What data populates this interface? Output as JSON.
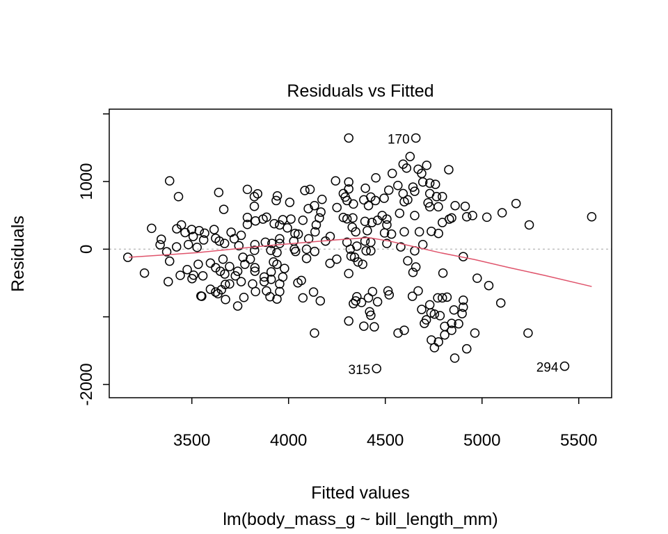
{
  "chart_data": {
    "type": "scatter",
    "title": "Residuals vs Fitted",
    "xlabel": "Fitted values",
    "subtitle": "lm(body_mass_g ~ bill_length_mm)",
    "ylabel": "Residuals",
    "xlim": [
      3073,
      5670
    ],
    "ylim": [
      -2196,
      2070
    ],
    "xticks": [
      3500,
      4000,
      4500,
      5000,
      5500
    ],
    "xtick_labels": [
      "3500",
      "4000",
      "4500",
      "5000",
      "5500"
    ],
    "yticks": [
      -2000,
      -1000,
      0,
      1000,
      2000
    ],
    "ytick_labels": [
      {
        "value": 1000,
        "label": "1000"
      },
      {
        "value": 0,
        "label": "0"
      },
      {
        "value": -2000,
        "label": "-2000"
      }
    ],
    "reference_line": {
      "y": 0,
      "color": "#BEBEBE",
      "style": "dotted"
    },
    "smooth_color": "#DF536B",
    "point_color": "#000000",
    "labeled_points": [
      {
        "label": "170",
        "x": 4658,
        "y": 1644
      },
      {
        "label": "315",
        "x": 4455,
        "y": -1765
      },
      {
        "label": "294",
        "x": 5427,
        "y": -1730
      }
    ],
    "smooth": [
      [
        3175,
        -120
      ],
      [
        3527,
        -52
      ],
      [
        3886,
        51
      ],
      [
        4245,
        137
      ],
      [
        4413,
        171
      ],
      [
        4520,
        120
      ],
      [
        4664,
        27
      ],
      [
        4783,
        -52
      ],
      [
        4963,
        -154
      ],
      [
        5142,
        -274
      ],
      [
        5322,
        -387
      ],
      [
        5567,
        -552
      ]
    ],
    "points": [
      [
        3169,
        -120
      ],
      [
        3255,
        -353
      ],
      [
        3292,
        308
      ],
      [
        3378,
        -480
      ],
      [
        3385,
        1010
      ],
      [
        3431,
        777
      ],
      [
        3342,
        147
      ],
      [
        3336,
        65
      ],
      [
        3370,
        -38
      ],
      [
        3385,
        -178
      ],
      [
        3421,
        34
      ],
      [
        3422,
        301
      ],
      [
        3446,
        359
      ],
      [
        3465,
        246
      ],
      [
        3440,
        -387
      ],
      [
        3476,
        -302
      ],
      [
        3482,
        68
      ],
      [
        3499,
        291
      ],
      [
        3507,
        188
      ],
      [
        3527,
        27
      ],
      [
        3501,
        -435
      ],
      [
        3509,
        -384
      ],
      [
        3533,
        -223
      ],
      [
        3538,
        274
      ],
      [
        3557,
        -394
      ],
      [
        3566,
        236
      ],
      [
        3561,
        137
      ],
      [
        3547,
        -692
      ],
      [
        3551,
        -696
      ],
      [
        3615,
        291
      ],
      [
        3623,
        161
      ],
      [
        3642,
        120
      ],
      [
        3639,
        839
      ],
      [
        3665,
        589
      ],
      [
        3596,
        -206
      ],
      [
        3623,
        -274
      ],
      [
        3647,
        -326
      ],
      [
        3670,
        -367
      ],
      [
        3661,
        -148
      ],
      [
        3669,
        85
      ],
      [
        3695,
        -257
      ],
      [
        3703,
        250
      ],
      [
        3719,
        154
      ],
      [
        3755,
        205
      ],
      [
        3743,
        51
      ],
      [
        3764,
        -120
      ],
      [
        3774,
        -223
      ],
      [
        3802,
        -148
      ],
      [
        3737,
        -326
      ],
      [
        3725,
        -394
      ],
      [
        3755,
        -480
      ],
      [
        3695,
        -514
      ],
      [
        3673,
        -521
      ],
      [
        3653,
        -600
      ],
      [
        3623,
        -634
      ],
      [
        3596,
        -593
      ],
      [
        3635,
        -658
      ],
      [
        3674,
        -744
      ],
      [
        3737,
        -840
      ],
      [
        3769,
        -713
      ],
      [
        3787,
        884
      ],
      [
        3823,
        777
      ],
      [
        3840,
        819
      ],
      [
        3823,
        634
      ],
      [
        3787,
        469
      ],
      [
        3787,
        366
      ],
      [
        3829,
        418
      ],
      [
        3868,
        445
      ],
      [
        3886,
        473
      ],
      [
        3926,
        377
      ],
      [
        3954,
        359
      ],
      [
        3970,
        435
      ],
      [
        4012,
        445
      ],
      [
        3994,
        315
      ],
      [
        3942,
        788
      ],
      [
        3936,
        719
      ],
      [
        4006,
        692
      ],
      [
        4074,
        428
      ],
      [
        4084,
        867
      ],
      [
        4111,
        884
      ],
      [
        4102,
        599
      ],
      [
        4134,
        644
      ],
      [
        4173,
        736
      ],
      [
        4167,
        548
      ],
      [
        4159,
        462
      ],
      [
        4143,
        359
      ],
      [
        4137,
        257
      ],
      [
        4104,
        154
      ],
      [
        4093,
        0
      ],
      [
        4135,
        -34
      ],
      [
        4093,
        -137
      ],
      [
        4033,
        233
      ],
      [
        4050,
        223
      ],
      [
        4027,
        120
      ],
      [
        4030,
        0
      ],
      [
        4036,
        -34
      ],
      [
        3954,
        154
      ],
      [
        3954,
        85
      ],
      [
        3940,
        -51
      ],
      [
        3914,
        85
      ],
      [
        3880,
        103
      ],
      [
        3908,
        -17
      ],
      [
        3826,
        68
      ],
      [
        3824,
        -17
      ],
      [
        3826,
        -274
      ],
      [
        3826,
        -326
      ],
      [
        3814,
        -514
      ],
      [
        3829,
        -627
      ],
      [
        3874,
        -411
      ],
      [
        3874,
        -480
      ],
      [
        3910,
        -336
      ],
      [
        3910,
        -446
      ],
      [
        3940,
        -223
      ],
      [
        3922,
        -189
      ],
      [
        3979,
        -285
      ],
      [
        3970,
        -411
      ],
      [
        3954,
        -514
      ],
      [
        3954,
        -627
      ],
      [
        3940,
        -737
      ],
      [
        3904,
        -703
      ],
      [
        3886,
        -617
      ],
      [
        4074,
        -720
      ],
      [
        4129,
        -634
      ],
      [
        4164,
        -764
      ],
      [
        4048,
        -497
      ],
      [
        4066,
        -463
      ],
      [
        4134,
        -1240
      ],
      [
        4214,
        -209
      ],
      [
        4249,
        -148
      ],
      [
        4191,
        120
      ],
      [
        4215,
        188
      ],
      [
        4243,
        1010
      ],
      [
        4250,
        616
      ],
      [
        4283,
        822
      ],
      [
        4293,
        771
      ],
      [
        4302,
        719
      ],
      [
        4335,
        668
      ],
      [
        4283,
        469
      ],
      [
        4302,
        449
      ],
      [
        4332,
        462
      ],
      [
        4329,
        325
      ],
      [
        4347,
        257
      ],
      [
        4311,
        1644
      ],
      [
        4311,
        993
      ],
      [
        4311,
        891
      ],
      [
        4302,
        103
      ],
      [
        4319,
        0
      ],
      [
        4323,
        -103
      ],
      [
        4341,
        -120
      ],
      [
        4311,
        -360
      ],
      [
        4335,
        -805
      ],
      [
        4347,
        -764
      ],
      [
        4311,
        -1062
      ],
      [
        4658,
        1644
      ],
      [
        4455,
        -1765
      ],
      [
        5427,
        -1730
      ],
      [
        4628,
        1370
      ],
      [
        4592,
        1257
      ],
      [
        4610,
        1199
      ],
      [
        4670,
        1182
      ],
      [
        4714,
        1240
      ],
      [
        4688,
        1120
      ],
      [
        4828,
        1175
      ],
      [
        4536,
        1120
      ],
      [
        4451,
        1055
      ],
      [
        4397,
        901
      ],
      [
        4565,
        942
      ],
      [
        4518,
        873
      ],
      [
        4643,
        918
      ],
      [
        4592,
        822
      ],
      [
        4652,
        856
      ],
      [
        4694,
        993
      ],
      [
        4730,
        976
      ],
      [
        4759,
        959
      ],
      [
        4730,
        822
      ],
      [
        4765,
        777
      ],
      [
        4795,
        777
      ],
      [
        4616,
        730
      ],
      [
        4598,
        702
      ],
      [
        4721,
        685
      ],
      [
        4730,
        627
      ],
      [
        4774,
        627
      ],
      [
        4425,
        771
      ],
      [
        4449,
        719
      ],
      [
        4494,
        753
      ],
      [
        4389,
        730
      ],
      [
        4413,
        644
      ],
      [
        4574,
        531
      ],
      [
        4652,
        497
      ],
      [
        4861,
        644
      ],
      [
        4913,
        634
      ],
      [
        4921,
        479
      ],
      [
        4951,
        497
      ],
      [
        5025,
        473
      ],
      [
        5104,
        538
      ],
      [
        5176,
        675
      ],
      [
        5244,
        359
      ],
      [
        5567,
        479
      ],
      [
        4795,
        394
      ],
      [
        4831,
        445
      ],
      [
        4843,
        462
      ],
      [
        4395,
        411
      ],
      [
        4431,
        394
      ],
      [
        4460,
        428
      ],
      [
        4484,
        497
      ],
      [
        4508,
        445
      ],
      [
        4508,
        359
      ],
      [
        4407,
        274
      ],
      [
        4496,
        240
      ],
      [
        4532,
        223
      ],
      [
        4598,
        257
      ],
      [
        4676,
        257
      ],
      [
        4738,
        264
      ],
      [
        4775,
        233
      ],
      [
        4694,
        68
      ],
      [
        4580,
        34
      ],
      [
        4652,
        -24
      ],
      [
        4508,
        85
      ],
      [
        4395,
        120
      ],
      [
        4425,
        103
      ],
      [
        4353,
        45
      ],
      [
        4401,
        -24
      ],
      [
        4425,
        -24
      ],
      [
        4359,
        -189
      ],
      [
        4383,
        -223
      ],
      [
        4616,
        -172
      ],
      [
        4658,
        -264
      ],
      [
        4643,
        -343
      ],
      [
        4798,
        -353
      ],
      [
        4903,
        -110
      ],
      [
        4975,
        -429
      ],
      [
        5035,
        -538
      ],
      [
        5097,
        -795
      ],
      [
        5238,
        -1240
      ],
      [
        4353,
        -703
      ],
      [
        4377,
        -788
      ],
      [
        4413,
        -720
      ],
      [
        4434,
        -627
      ],
      [
        4460,
        -778
      ],
      [
        4514,
        -617
      ],
      [
        4520,
        -675
      ],
      [
        4640,
        -696
      ],
      [
        4670,
        -617
      ],
      [
        4419,
        -925
      ],
      [
        4425,
        -977
      ],
      [
        4389,
        -1138
      ],
      [
        4443,
        -1148
      ],
      [
        4566,
        -1240
      ],
      [
        4598,
        -1199
      ],
      [
        4688,
        -891
      ],
      [
        4730,
        -822
      ],
      [
        4736,
        -942
      ],
      [
        4754,
        -960
      ],
      [
        4783,
        -983
      ],
      [
        4702,
        -1097
      ],
      [
        4712,
        -1045
      ],
      [
        4771,
        -720
      ],
      [
        4795,
        -720
      ],
      [
        4819,
        -709
      ],
      [
        4903,
        -754
      ],
      [
        4903,
        -857
      ],
      [
        4897,
        -953
      ],
      [
        4855,
        -898
      ],
      [
        4843,
        -1097
      ],
      [
        4807,
        -1141
      ],
      [
        4843,
        -1199
      ],
      [
        4879,
        -1103
      ],
      [
        4807,
        -1268
      ],
      [
        4963,
        -1240
      ],
      [
        4738,
        -1343
      ],
      [
        4775,
        -1371
      ],
      [
        4754,
        -1456
      ],
      [
        4921,
        -1473
      ],
      [
        4859,
        -1610
      ]
    ]
  }
}
